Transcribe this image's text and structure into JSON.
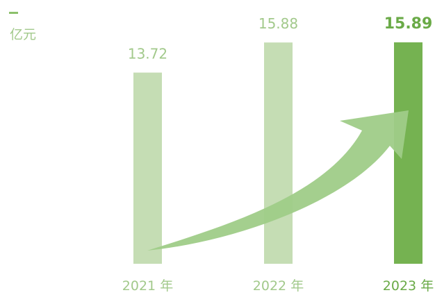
{
  "chart_data": {
    "type": "bar",
    "unit": "亿元",
    "categories": [
      "2021 年",
      "2022 年",
      "2023 年"
    ],
    "values": [
      13.72,
      15.88,
      15.89
    ],
    "value_labels": [
      "13.72",
      "15.88",
      "15.89"
    ],
    "highlight_index": 2,
    "ylim": [
      0,
      15.89
    ],
    "grid": false,
    "colors": {
      "bar": "#c5ddb4",
      "bar_highlight": "#75b251",
      "label": "#a2c98b",
      "label_highlight": "#6aaa47",
      "arrow": "#9fcc88",
      "unit_mark": "#8cc06b"
    }
  }
}
